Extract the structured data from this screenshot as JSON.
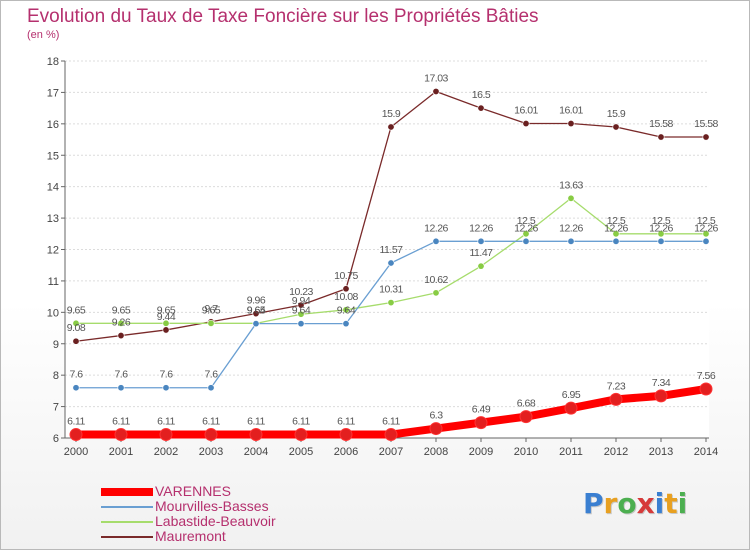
{
  "title": "Evolution du Taux de Taxe Foncière sur les Propriétés Bâties",
  "unit_label": "(en %)",
  "logo": {
    "text": "Proxiti",
    "letters": [
      "P",
      "r",
      "o",
      "x",
      "i",
      "t",
      "i"
    ],
    "colors": [
      "#3a7fd1",
      "#e8a020",
      "#4caf50",
      "#d63a3a",
      "#3a7fd1",
      "#e8a020",
      "#4caf50"
    ]
  },
  "chart_data": {
    "type": "line",
    "title": "Evolution du Taux de Taxe Foncière sur les Propriétés Bâties",
    "ylabel": "(en %)",
    "xlabel": "",
    "x": [
      "2000",
      "2001",
      "2002",
      "2003",
      "2004",
      "2005",
      "2006",
      "2007",
      "2008",
      "2009",
      "2010",
      "2011",
      "2012",
      "2013",
      "2014"
    ],
    "ylim": [
      6,
      18
    ],
    "yticks": [
      6,
      7,
      8,
      9,
      10,
      11,
      12,
      13,
      14,
      15,
      16,
      17,
      18
    ],
    "grid": "horizontal",
    "legend_position": "bottom-left",
    "series": [
      {
        "name": "VARENNES",
        "color": "#ff0000",
        "marker": "#e31f1f",
        "values": [
          6.11,
          6.11,
          6.11,
          6.11,
          6.11,
          6.11,
          6.11,
          6.11,
          6.3,
          6.49,
          6.68,
          6.95,
          7.23,
          7.34,
          7.56
        ],
        "labels": [
          "6.11",
          "6.11",
          "6.11",
          "6.11",
          "6.11",
          "6.11",
          "6.11",
          "6.11",
          "6.3",
          "6.49",
          "6.68",
          "6.95",
          "7.23",
          "7.34",
          "7.56"
        ]
      },
      {
        "name": "Mourvilles-Basses",
        "color": "#6a9fd2",
        "marker": "#4a86c0",
        "values": [
          7.6,
          7.6,
          7.6,
          7.6,
          9.64,
          9.64,
          9.64,
          11.57,
          12.26,
          12.26,
          12.26,
          12.26,
          12.26,
          12.26,
          12.26
        ],
        "labels": [
          "7.6",
          "7.6",
          "7.6",
          "7.6",
          "9.64",
          "9.64",
          "9.64",
          "11.57",
          "12.26",
          "12.26",
          "12.26",
          "12.26",
          "12.26",
          "12.26",
          "12.26"
        ]
      },
      {
        "name": "Labastide-Beauvoir",
        "color": "#a6dc6c",
        "marker": "#88cc44",
        "values": [
          9.65,
          9.65,
          9.65,
          9.65,
          9.65,
          9.94,
          10.08,
          10.31,
          10.62,
          11.47,
          12.5,
          13.63,
          12.5,
          12.5,
          12.5
        ],
        "labels": [
          "9.65",
          "9.65",
          "9.65",
          "9.65",
          "9.65",
          "9.94",
          "10.08",
          "10.31",
          "10.62",
          "11.47",
          "12.5",
          "13.63",
          "12.5",
          "12.5",
          "12.5"
        ]
      },
      {
        "name": "Mauremont",
        "color": "#7a2a2a",
        "marker": "#6a2020",
        "values": [
          9.08,
          9.26,
          9.44,
          9.7,
          9.96,
          10.23,
          10.75,
          15.9,
          17.03,
          16.5,
          16.01,
          16.01,
          15.9,
          15.58,
          15.58
        ],
        "labels": [
          "9.08",
          "9.26",
          "9.44",
          "9.7",
          "9.96",
          "10.23",
          "10.75",
          "15.9",
          "17.03",
          "16.5",
          "16.01",
          "16.01",
          "15.9",
          "15.58",
          "15.58"
        ]
      }
    ]
  }
}
